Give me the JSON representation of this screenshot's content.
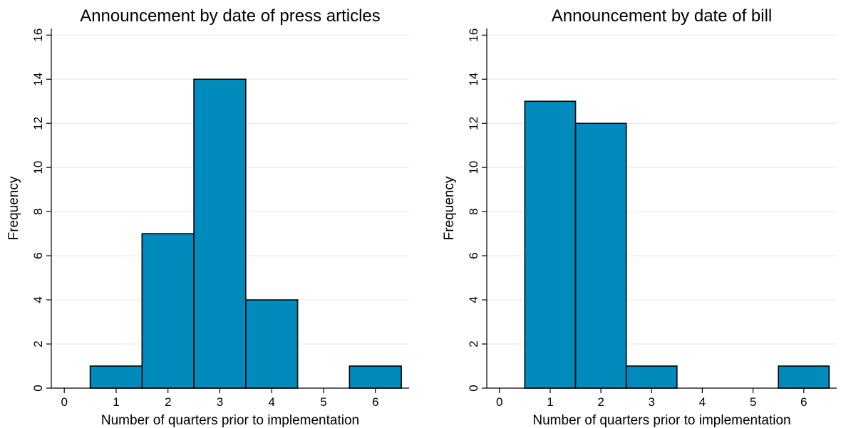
{
  "chart_data": [
    {
      "type": "bar",
      "title": "Announcement by date of press articles",
      "xlabel": "Number of quarters prior to implementation",
      "ylabel": "Frequency",
      "x_ticks": [
        0,
        1,
        2,
        3,
        4,
        5,
        6
      ],
      "y_ticks": [
        0,
        2,
        4,
        6,
        8,
        10,
        12,
        14,
        16
      ],
      "xlim": [
        -0.25,
        6.65
      ],
      "ylim": [
        0,
        16.3
      ],
      "bin_width": 1,
      "x": [
        1,
        2,
        3,
        4,
        6
      ],
      "values": [
        1,
        7,
        14,
        4,
        1
      ],
      "bar_color": "#008bbc",
      "grid": true
    },
    {
      "type": "bar",
      "title": "Announcement by date of bill",
      "xlabel": "Number of quarters prior to implementation",
      "ylabel": "Frequency",
      "x_ticks": [
        0,
        1,
        2,
        3,
        4,
        5,
        6
      ],
      "y_ticks": [
        0,
        2,
        4,
        6,
        8,
        10,
        12,
        14,
        16
      ],
      "xlim": [
        -0.25,
        6.65
      ],
      "ylim": [
        0,
        16.3
      ],
      "bin_width": 1,
      "x": [
        1,
        2,
        3,
        6
      ],
      "values": [
        13,
        12,
        1,
        1
      ],
      "bar_color": "#008bbc",
      "grid": true
    }
  ]
}
